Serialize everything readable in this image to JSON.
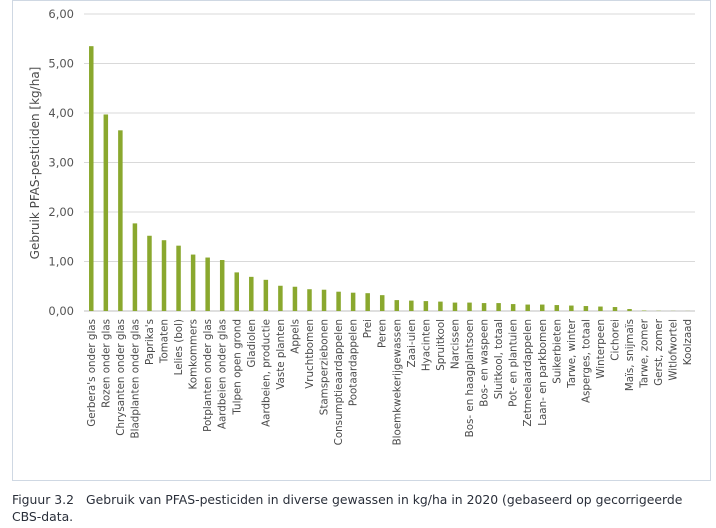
{
  "chart_data": {
    "type": "bar",
    "title": "",
    "xlabel": "",
    "ylabel": "Gebruik PFAS-pesticiden [kg/ha]",
    "ylim": [
      0,
      6
    ],
    "yticks": [
      "0,00",
      "1,00",
      "2,00",
      "3,00",
      "4,00",
      "5,00",
      "6,00"
    ],
    "grid": true,
    "bar_color": "#8aa82e",
    "categories": [
      "Gerbera's onder glas",
      "Rozen onder glas",
      "Chrysanten onder glas",
      "Bladplanten onder glas",
      "Paprika's",
      "Tomaten",
      "Lelies (bol)",
      "Komkommers",
      "Potplanten onder glas",
      "Aardbeien onder glas",
      "Tulpen open grond",
      "Gladiolen",
      "Aardbeien, productie",
      "Vaste planten",
      "Appels",
      "Vruchtbomen",
      "Stamsperziebonen",
      "Consumptieaardappelen",
      "Pootaardappelen",
      "Prei",
      "Peren",
      "Bloemkwekerijgewassen",
      "Zaai-uien",
      "Hyacinten",
      "Spruitkool",
      "Narcissen",
      "Bos- en haagplantsoen",
      "Bos- en waspeen",
      "Sluitkool, totaal",
      "Pot- en plantuien",
      "Zetmeelaardappelen",
      "Laan- en parkbomen",
      "Suikerbieten",
      "Tarwe, winter",
      "Asperges, totaal",
      "Winterpeen",
      "Cichorei",
      "Maïs, snijmaïs",
      "Tarwe, zomer",
      "Gerst, zomer",
      "Witlofwortel",
      "Koolzaad"
    ],
    "values": [
      5.35,
      3.97,
      3.65,
      1.77,
      1.52,
      1.43,
      1.32,
      1.14,
      1.08,
      1.03,
      0.78,
      0.69,
      0.63,
      0.51,
      0.49,
      0.44,
      0.43,
      0.39,
      0.37,
      0.36,
      0.32,
      0.22,
      0.21,
      0.2,
      0.19,
      0.17,
      0.17,
      0.16,
      0.16,
      0.14,
      0.13,
      0.13,
      0.12,
      0.11,
      0.1,
      0.09,
      0.08,
      0.04,
      0.01,
      0.005,
      0.003,
      0.002
    ]
  },
  "caption": {
    "number": "Figuur 3.2",
    "text": "Gebruik van PFAS-pesticiden in diverse gewassen in kg/ha in 2020 (gebaseerd op gecorrigeerde CBS-data."
  }
}
